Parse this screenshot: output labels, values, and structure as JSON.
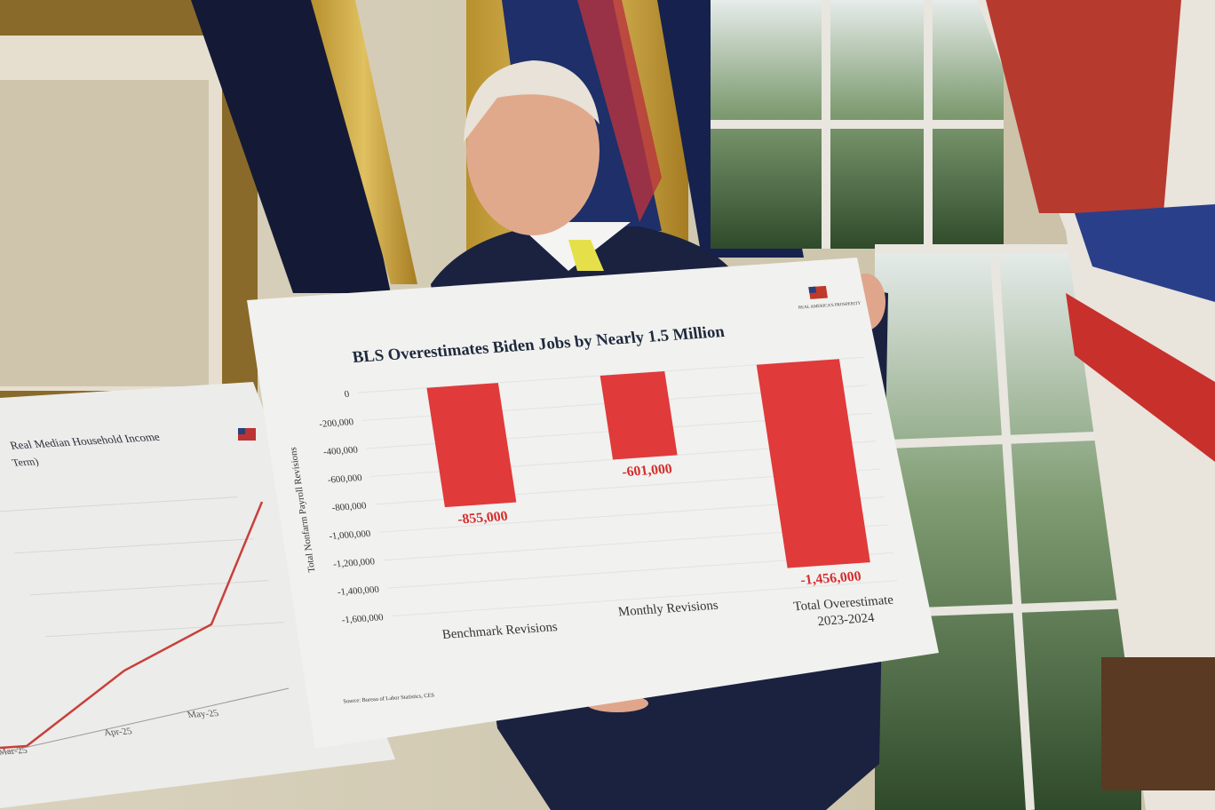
{
  "main_board": {
    "logo_text": "REAL AMERICA'S PROSPERITY",
    "chart_data": {
      "type": "bar",
      "title": "BLS Overestimates Biden Jobs by Nearly 1.5 Million",
      "ylabel": "Total Nonfarm Payroll Revisions",
      "xlabel": "",
      "categories": [
        "Benchmark Revisions",
        "Monthly Revisions",
        "Total Overestimate 2023-2024"
      ],
      "values": [
        -855000,
        -601000,
        -1456000
      ],
      "data_labels": [
        "-855,000",
        "-601,000",
        "-1,456,000"
      ],
      "ylim": [
        -1600000,
        0
      ],
      "yticks": [
        "0",
        "-200,000",
        "-400,000",
        "-600,000",
        "-800,000",
        "-1,000,000",
        "-1,200,000",
        "-1,400,000",
        "-1,600,000"
      ],
      "grid": true,
      "bar_color": "#e03a3a",
      "label_color": "#d42e2e",
      "source": "Source: Bureau of Labor Statistics, CES"
    }
  },
  "side_board": {
    "chart_data": {
      "type": "line",
      "title": "Real Median Household Income",
      "subtitle": "Term)",
      "categories": [
        "Mar-25",
        "Apr-25",
        "May-25"
      ],
      "line_color": "#c8403a"
    }
  }
}
